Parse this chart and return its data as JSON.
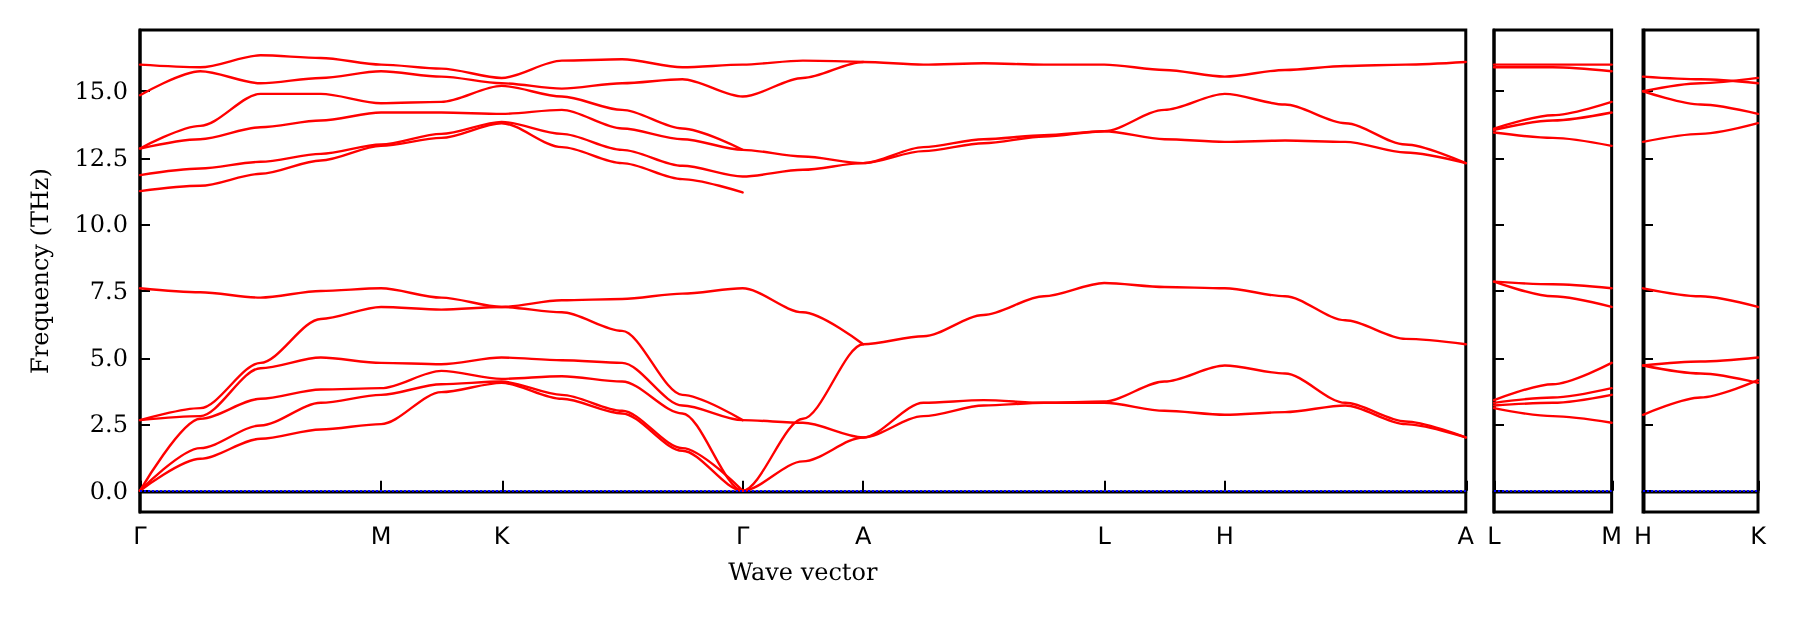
{
  "chart_data": [
    {
      "type": "line",
      "xlabel": "Wave vector",
      "ylabel": "Frequency (THz)",
      "marker": "none",
      "line_style": "solid",
      "categories": [
        "Γ",
        null,
        null,
        null,
        "M",
        null,
        "K",
        null,
        null,
        null,
        "Γ",
        null,
        "A",
        null,
        null,
        null,
        "L",
        null,
        "H",
        null,
        null,
        null,
        "A"
      ],
      "ylim": [
        -0.8,
        17.3
      ],
      "yticks": [
        {
          "value": 0,
          "label": "0.0"
        },
        {
          "value": 2.5,
          "label": "2.5"
        },
        {
          "value": 5,
          "label": "5.0"
        },
        {
          "value": 7.5,
          "label": "7.5"
        },
        {
          "value": 10,
          "label": "10.0"
        },
        {
          "value": 12.5,
          "label": "12.5"
        },
        {
          "value": 15,
          "label": "15.0"
        }
      ],
      "ref_lines": [
        {
          "axis": "y",
          "value": 0,
          "color": "#0000ff",
          "line_style": "dotted"
        }
      ],
      "series": [
        {
          "color": "#ff0000",
          "values": [
            0,
            1.2,
            1.95,
            2.3,
            2.5,
            3.7,
            4.05,
            3.45,
            2.9,
            1.5,
            0,
            1.1,
            2.0,
            2.8,
            3.2,
            3.3,
            3.3,
            3.0,
            2.85,
            2.95,
            3.2,
            2.5,
            2.0
          ]
        },
        {
          "color": "#ff0000",
          "values": [
            0,
            1.6,
            2.45,
            3.3,
            3.6,
            4.0,
            4.1,
            3.6,
            3.0,
            1.6,
            0,
            null,
            null,
            null,
            null,
            null,
            null,
            null,
            null,
            null,
            null,
            null,
            null
          ]
        },
        {
          "color": "#ff0000",
          "values": [
            0,
            2.7,
            3.45,
            3.8,
            3.85,
            4.5,
            4.2,
            4.3,
            4.1,
            2.9,
            0,
            2.7,
            5.5,
            5.8,
            6.6,
            7.3,
            7.8,
            7.65,
            7.6,
            7.3,
            6.4,
            5.7,
            5.5
          ]
        },
        {
          "color": "#ff0000",
          "values": [
            2.65,
            2.8,
            4.6,
            5.0,
            4.8,
            4.75,
            5.0,
            4.9,
            4.8,
            3.2,
            2.65,
            2.55,
            2.0,
            3.3,
            3.4,
            3.3,
            3.35,
            4.1,
            4.7,
            4.4,
            3.3,
            2.6,
            2.0
          ]
        },
        {
          "color": "#ff0000",
          "values": [
            2.65,
            3.1,
            4.8,
            6.45,
            6.9,
            6.8,
            6.9,
            6.7,
            6.0,
            3.6,
            2.65,
            null,
            null,
            null,
            null,
            null,
            null,
            null,
            null,
            null,
            null,
            null,
            null
          ]
        },
        {
          "color": "#ff0000",
          "values": [
            7.6,
            7.45,
            7.25,
            7.5,
            7.6,
            7.25,
            6.9,
            7.15,
            7.2,
            7.4,
            7.6,
            6.7,
            5.5,
            null,
            null,
            null,
            null,
            null,
            null,
            null,
            null,
            null,
            null
          ]
        },
        {
          "color": "#ff0000",
          "values": [
            11.25,
            11.45,
            11.9,
            12.4,
            12.95,
            13.25,
            13.8,
            12.9,
            12.3,
            11.7,
            11.2,
            null,
            null,
            null,
            null,
            null,
            null,
            null,
            null,
            null,
            null,
            null,
            null
          ]
        },
        {
          "color": "#ff0000",
          "values": [
            11.85,
            12.1,
            12.35,
            12.65,
            13.0,
            13.4,
            13.85,
            13.4,
            12.8,
            12.2,
            11.8,
            12.05,
            12.3,
            12.75,
            13.05,
            13.3,
            13.5,
            13.2,
            13.1,
            13.15,
            13.1,
            12.7,
            12.3
          ]
        },
        {
          "color": "#ff0000",
          "values": [
            12.85,
            13.2,
            13.65,
            13.9,
            14.2,
            14.2,
            14.15,
            14.3,
            13.6,
            13.2,
            12.8,
            12.55,
            12.3,
            12.9,
            13.2,
            13.35,
            13.5,
            14.3,
            14.9,
            14.5,
            13.8,
            13.0,
            12.3
          ]
        },
        {
          "color": "#ff0000",
          "values": [
            12.85,
            13.7,
            14.9,
            14.9,
            14.55,
            14.6,
            15.2,
            14.8,
            14.3,
            13.6,
            12.8,
            null,
            null,
            null,
            null,
            null,
            null,
            null,
            null,
            null,
            null,
            null,
            null
          ]
        },
        {
          "color": "#ff0000",
          "values": [
            14.85,
            15.75,
            15.3,
            15.5,
            15.75,
            15.55,
            15.3,
            15.1,
            15.3,
            15.45,
            14.8,
            15.5,
            16.1,
            16.0,
            16.05,
            16.0,
            16.0,
            15.8,
            15.55,
            15.8,
            15.95,
            16.0,
            16.1
          ]
        },
        {
          "color": "#ff0000",
          "values": [
            16.0,
            15.9,
            16.35,
            16.25,
            16.0,
            15.85,
            15.5,
            16.15,
            16.2,
            15.9,
            16.0,
            16.15,
            16.1,
            null,
            null,
            null,
            null,
            null,
            null,
            null,
            null,
            null,
            null
          ]
        }
      ]
    },
    {
      "type": "line",
      "marker": "none",
      "line_style": "solid",
      "tick_labels": "x",
      "categories": [
        "L",
        null,
        "M"
      ],
      "ylim": [
        -0.8,
        17.3
      ],
      "yticks": [
        {
          "value": 0,
          "label": null
        },
        {
          "value": 2.5,
          "label": null
        },
        {
          "value": 5,
          "label": null
        },
        {
          "value": 7.5,
          "label": null
        },
        {
          "value": 10,
          "label": null
        },
        {
          "value": 12.5,
          "label": null
        },
        {
          "value": 15,
          "label": null
        }
      ],
      "ref_lines": [
        {
          "axis": "y",
          "value": 0,
          "color": "#0000ff",
          "line_style": "dotted"
        }
      ],
      "series": [
        {
          "color": "#ff0000",
          "values": [
            3.1,
            2.8,
            2.55
          ]
        },
        {
          "color": "#ff0000",
          "values": [
            3.2,
            3.3,
            3.6
          ]
        },
        {
          "color": "#ff0000",
          "values": [
            3.3,
            3.5,
            3.85
          ]
        },
        {
          "color": "#ff0000",
          "values": [
            3.4,
            4.0,
            4.8
          ]
        },
        {
          "color": "#ff0000",
          "values": [
            7.85,
            7.75,
            7.6
          ]
        },
        {
          "color": "#ff0000",
          "values": [
            7.85,
            7.3,
            6.9
          ]
        },
        {
          "color": "#ff0000",
          "values": [
            13.45,
            13.25,
            12.95
          ]
        },
        {
          "color": "#ff0000",
          "values": [
            13.55,
            13.9,
            14.2
          ]
        },
        {
          "color": "#ff0000",
          "values": [
            13.6,
            14.1,
            14.6
          ]
        },
        {
          "color": "#ff0000",
          "values": [
            15.9,
            15.9,
            15.75
          ]
        },
        {
          "color": "#ff0000",
          "values": [
            16.0,
            16.0,
            16.0
          ]
        }
      ]
    },
    {
      "type": "line",
      "marker": "none",
      "line_style": "solid",
      "tick_labels": "x",
      "categories": [
        "H",
        null,
        "K"
      ],
      "ylim": [
        -0.8,
        17.3
      ],
      "yticks": [
        {
          "value": 0,
          "label": null
        },
        {
          "value": 2.5,
          "label": null
        },
        {
          "value": 5,
          "label": null
        },
        {
          "value": 7.5,
          "label": null
        },
        {
          "value": 10,
          "label": null
        },
        {
          "value": 12.5,
          "label": null
        },
        {
          "value": 15,
          "label": null
        }
      ],
      "ref_lines": [
        {
          "axis": "y",
          "value": 0,
          "color": "#0000ff",
          "line_style": "dotted"
        }
      ],
      "series": [
        {
          "color": "#ff0000",
          "values": [
            2.85,
            3.5,
            4.15
          ]
        },
        {
          "color": "#ff0000",
          "values": [
            4.7,
            4.85,
            5.0
          ]
        },
        {
          "color": "#ff0000",
          "values": [
            4.7,
            4.4,
            4.05
          ]
        },
        {
          "color": "#ff0000",
          "values": [
            7.6,
            7.3,
            6.9
          ]
        },
        {
          "color": "#ff0000",
          "values": [
            13.1,
            13.4,
            13.8
          ]
        },
        {
          "color": "#ff0000",
          "values": [
            15.0,
            14.5,
            14.15
          ]
        },
        {
          "color": "#ff0000",
          "values": [
            15.0,
            15.3,
            15.5
          ]
        },
        {
          "color": "#ff0000",
          "values": [
            15.55,
            15.45,
            15.3
          ]
        }
      ]
    }
  ]
}
